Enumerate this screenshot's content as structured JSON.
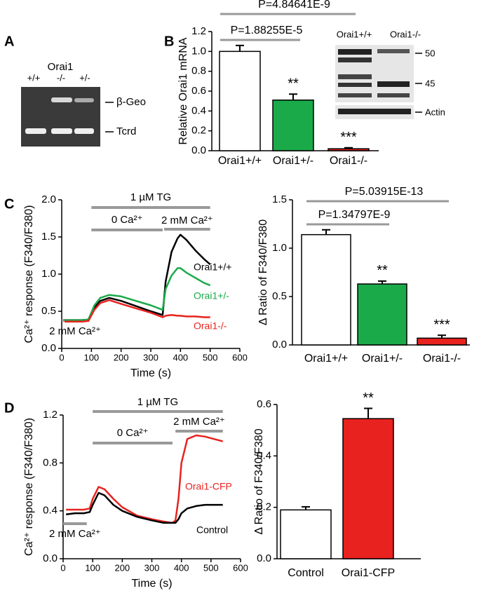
{
  "panel_labels": [
    "A",
    "B",
    "C",
    "D"
  ],
  "gel": {
    "gene": "Orai1",
    "lanes": [
      "+/+",
      "-/-",
      "+/-"
    ],
    "bands": [
      "β-Geo",
      "Tcrd"
    ]
  },
  "blot": {
    "lanes": [
      "Orai1+/+",
      "Orai1-/-"
    ],
    "markers": [
      "50",
      "45",
      "Actin"
    ]
  },
  "chart_data": [
    {
      "type": "bar",
      "ylabel": "Relative Orai1 mRNA",
      "categories": [
        "Orai1+/+",
        "Orai1+/-",
        "Orai1-/-"
      ],
      "values": [
        1.0,
        0.51,
        0.02
      ],
      "errors": [
        0.06,
        0.06,
        0.01
      ],
      "colors": [
        "#ffffff",
        "#1aaa4a",
        "#e8221e"
      ],
      "significance_labels": [
        null,
        "**",
        "***"
      ],
      "annotations": [
        "P=4.84641E-9",
        "P=1.88255E-5"
      ],
      "ylim": [
        0,
        1.2
      ],
      "yticks": [
        {
          "value": 0,
          "label": "0.0"
        },
        0.2,
        0.4,
        0.6,
        0.8,
        {
          "value": 1,
          "label": "1.0"
        },
        1.2
      ]
    },
    {
      "type": "line",
      "xlabel": "Time (s)",
      "ylabel": "Ca²⁺ response (F340/F380)",
      "x": [
        10,
        30,
        50,
        70,
        90,
        110,
        130,
        160,
        200,
        250,
        300,
        340,
        350,
        370,
        390,
        400,
        420,
        450,
        480,
        500
      ],
      "series": [
        {
          "name": "Orai1+/+",
          "color": "#000000",
          "values": [
            0.38,
            0.38,
            0.38,
            0.38,
            0.39,
            0.55,
            0.64,
            0.68,
            0.64,
            0.57,
            0.5,
            0.45,
            0.9,
            1.3,
            1.48,
            1.53,
            1.46,
            1.32,
            1.2,
            1.13
          ]
        },
        {
          "name": "Orai1+/-",
          "color": "#1aaa4a",
          "values": [
            0.38,
            0.38,
            0.38,
            0.38,
            0.39,
            0.58,
            0.68,
            0.72,
            0.7,
            0.64,
            0.58,
            0.52,
            0.8,
            0.98,
            1.08,
            1.08,
            1.02,
            0.95,
            0.88,
            0.85
          ]
        },
        {
          "name": "Orai1-/-",
          "color": "#e8221e",
          "values": [
            0.36,
            0.36,
            0.36,
            0.36,
            0.37,
            0.52,
            0.61,
            0.65,
            0.6,
            0.54,
            0.48,
            0.42,
            0.44,
            0.45,
            0.44,
            0.44,
            0.43,
            0.43,
            0.42,
            0.42
          ]
        }
      ],
      "periods": [
        {
          "text": "1 µM TG",
          "start": 100,
          "end": 500
        },
        {
          "text": "0 Ca²⁺",
          "start": 100,
          "end": 340
        },
        {
          "text": "2 mM Ca²⁺",
          "start": 0,
          "end": 90
        },
        {
          "text": "2 mM Ca²⁺",
          "start": 345,
          "end": 500
        }
      ],
      "xlim": [
        0,
        600
      ],
      "xticks": [
        0,
        100,
        200,
        300,
        400,
        500,
        600
      ],
      "ylim": [
        0,
        2
      ],
      "yticks": [
        {
          "value": 0,
          "label": "0.0"
        },
        0.5,
        {
          "value": 1,
          "label": "1.0"
        },
        1.5,
        {
          "value": 2,
          "label": "2.0"
        }
      ]
    },
    {
      "type": "bar",
      "ylabel": "Δ Ratio of F340/F380",
      "categories": [
        "Orai1+/+",
        "Orai1+/-",
        "Orai1-/-"
      ],
      "values": [
        1.14,
        0.63,
        0.07
      ],
      "errors": [
        0.05,
        0.03,
        0.03
      ],
      "colors": [
        "#ffffff",
        "#1aaa4a",
        "#e8221e"
      ],
      "significance_labels": [
        null,
        "**",
        "***"
      ],
      "annotations": [
        "P=5.03915E-13",
        "P=1.34797E-9"
      ],
      "ylim": [
        0,
        1.5
      ],
      "yticks": [
        {
          "value": 0,
          "label": "0.0"
        },
        0.5,
        {
          "value": 1,
          "label": "1.0"
        },
        1.5
      ]
    },
    {
      "type": "line",
      "xlabel": "Time (s)",
      "ylabel": "Ca²⁺ response (F340/F380)",
      "x": [
        10,
        40,
        70,
        90,
        100,
        120,
        140,
        170,
        200,
        250,
        300,
        340,
        370,
        380,
        390,
        400,
        420,
        450,
        480,
        510,
        540
      ],
      "series": [
        {
          "name": "Orai1-CFP",
          "color": "#e8221e",
          "values": [
            0.41,
            0.41,
            0.41,
            0.42,
            0.5,
            0.6,
            0.58,
            0.5,
            0.43,
            0.36,
            0.33,
            0.31,
            0.3,
            0.32,
            0.5,
            0.8,
            1.0,
            1.03,
            1.02,
            1.0,
            0.98
          ]
        },
        {
          "name": "Control",
          "color": "#000000",
          "values": [
            0.37,
            0.38,
            0.38,
            0.39,
            0.45,
            0.55,
            0.53,
            0.45,
            0.4,
            0.35,
            0.32,
            0.3,
            0.3,
            0.3,
            0.33,
            0.38,
            0.42,
            0.44,
            0.45,
            0.45,
            0.45
          ]
        }
      ],
      "periods": [
        {
          "text": "1 µM TG",
          "start": 100,
          "end": 540
        },
        {
          "text": "0 Ca²⁺",
          "start": 100,
          "end": 370
        },
        {
          "text": "2 mM Ca²⁺",
          "start": 0,
          "end": 80
        },
        {
          "text": "2 mM Ca²⁺",
          "start": 380,
          "end": 540
        }
      ],
      "xlim": [
        0,
        600
      ],
      "xticks": [
        0,
        100,
        200,
        300,
        400,
        500,
        600
      ],
      "ylim": [
        0,
        1.2
      ],
      "yticks": [
        {
          "value": 0,
          "label": "0.0"
        },
        0.4,
        0.8,
        1.2
      ]
    },
    {
      "type": "bar",
      "ylabel": "Δ Ratio of F340/F380",
      "categories": [
        "Control",
        "Orai1-CFP"
      ],
      "values": [
        0.19,
        0.545
      ],
      "errors": [
        0.012,
        0.04
      ],
      "colors": [
        "#ffffff",
        "#e8221e"
      ],
      "significance_labels": [
        null,
        "**"
      ],
      "annotations": [],
      "ylim": [
        0,
        0.6
      ],
      "yticks": [
        {
          "value": 0,
          "label": "0.0"
        },
        0.2,
        0.4,
        0.6
      ]
    }
  ]
}
